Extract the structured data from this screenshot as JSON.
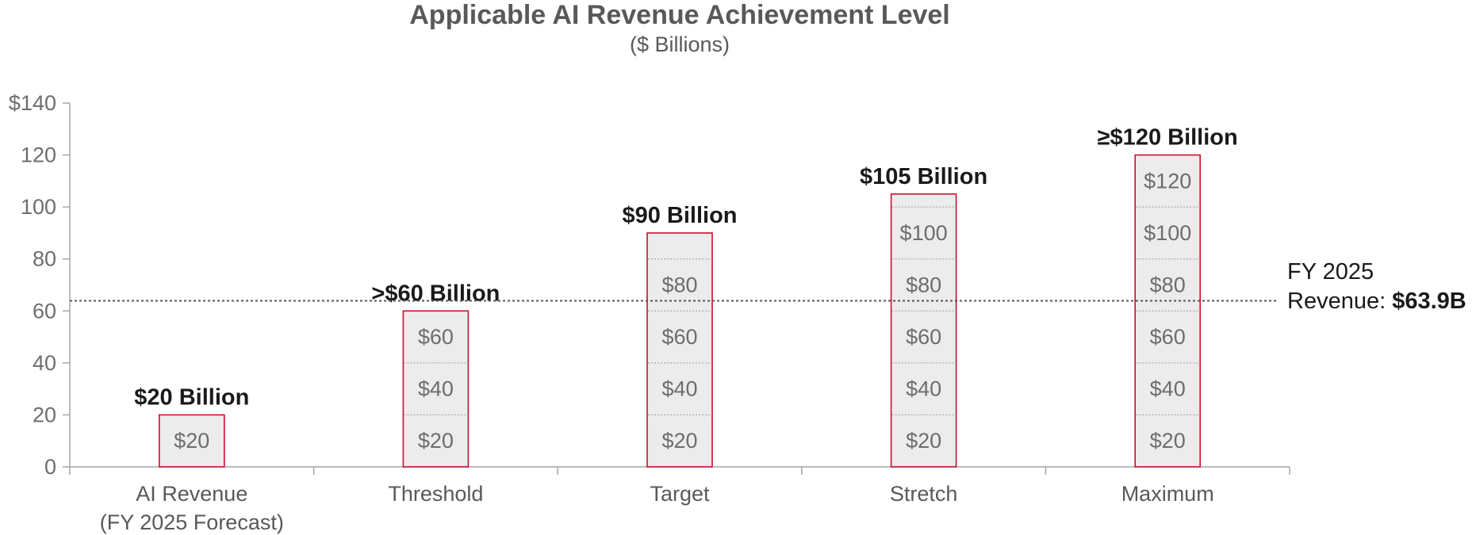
{
  "chart_data": {
    "type": "bar",
    "title": "Applicable AI Revenue Achievement Level",
    "subtitle": "($ Billions)",
    "xlabel": "",
    "ylabel": "",
    "ylim": [
      0,
      140
    ],
    "y_ticks": [
      "$140",
      "120",
      "100",
      "80",
      "60",
      "40",
      "20",
      "0"
    ],
    "y_tick_values": [
      140,
      120,
      100,
      80,
      60,
      40,
      20,
      0
    ],
    "categories": [
      {
        "lines": [
          "AI Revenue",
          "(FY 2025 Forecast)"
        ]
      },
      {
        "lines": [
          "Threshold"
        ]
      },
      {
        "lines": [
          "Target"
        ]
      },
      {
        "lines": [
          "Stretch"
        ]
      },
      {
        "lines": [
          "Maximum"
        ]
      }
    ],
    "values": [
      20,
      60,
      90,
      105,
      120
    ],
    "bar_labels": [
      "$20 Billion",
      ">$60 Billion",
      "$90 Billion",
      "$105 Billion",
      "≥$120 Billion"
    ],
    "segment_labels": [
      [
        "$20"
      ],
      [
        "$20",
        "$40",
        "$60"
      ],
      [
        "$20",
        "$40",
        "$60",
        "$80"
      ],
      [
        "$20",
        "$40",
        "$60",
        "$80",
        "$100"
      ],
      [
        "$20",
        "$40",
        "$60",
        "$80",
        "$100",
        "$120"
      ]
    ],
    "segment_step": 20,
    "reference_line": {
      "value": 63.9,
      "label_line1": "FY 2025",
      "label_prefix": "Revenue: ",
      "label_value": "$63.9B"
    },
    "grid": false,
    "colors": {
      "bar_fill": "#ececec",
      "bar_stroke": "#c8102e",
      "segment_divider": "#9a9a9a",
      "axis": "#a6a6a6",
      "reference_line": "#555555"
    }
  }
}
